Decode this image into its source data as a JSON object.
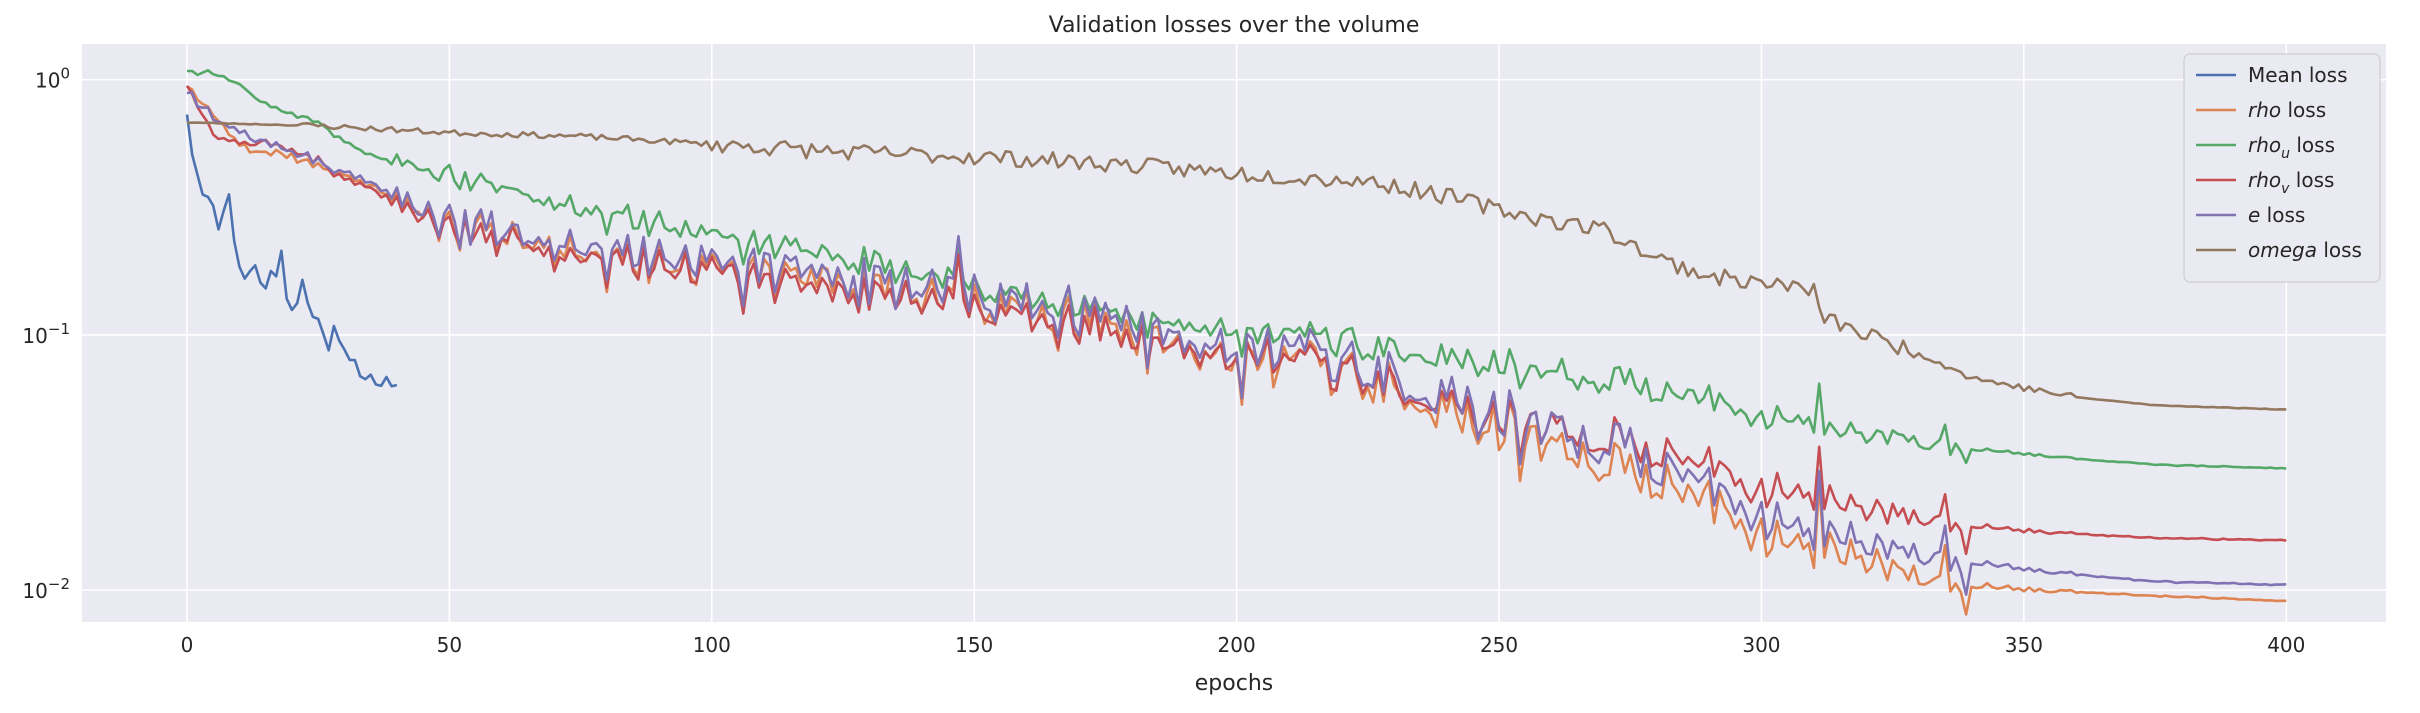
{
  "chart_data": {
    "type": "line",
    "title": "Validation losses over the volume",
    "xlabel": "epochs",
    "ylabel": "",
    "xlim": [
      -20,
      419
    ],
    "ylim": [
      0.0075,
      1.38
    ],
    "yscale": "log",
    "x_ticks": [
      0,
      50,
      100,
      150,
      200,
      250,
      300,
      350,
      400
    ],
    "y_ticks": [
      {
        "value": 1,
        "label": "10^0"
      },
      {
        "value": 0.1,
        "label": "10^-1"
      },
      {
        "value": 0.01,
        "label": "10^-2"
      }
    ],
    "grid": true,
    "legend_position": "top-right",
    "colors": {
      "background": "#eaeaf2",
      "grid": "#ffffff",
      "mean": "#4c72b0",
      "rho": "#dd8452",
      "rho_u": "#55a868",
      "rho_v": "#c44e52",
      "e": "#8172b3",
      "omega": "#937860"
    },
    "legend": [
      {
        "key": "mean",
        "label": "Mean loss",
        "italic": "",
        "sub": "",
        "rest": ""
      },
      {
        "key": "rho",
        "label": "",
        "italic": "rho",
        "sub": "",
        "rest": " loss"
      },
      {
        "key": "rho_u",
        "label": "",
        "italic": "rho",
        "sub": "u",
        "rest": " loss"
      },
      {
        "key": "rho_v",
        "label": "",
        "italic": "rho",
        "sub": "v",
        "rest": " loss"
      },
      {
        "key": "e",
        "label": "",
        "italic": "e",
        "sub": "",
        "rest": " loss"
      },
      {
        "key": "omega",
        "label": "",
        "italic": "omega",
        "sub": "",
        "rest": " loss"
      }
    ],
    "series": [
      {
        "key": "mean",
        "name": "Mean loss",
        "end_epoch": 40,
        "points": [
          [
            0,
            0.75
          ],
          [
            1,
            0.52
          ],
          [
            2,
            0.43
          ],
          [
            3,
            0.37
          ],
          [
            4,
            0.34
          ],
          [
            5,
            0.31
          ],
          [
            6,
            0.27
          ],
          [
            7,
            0.3
          ],
          [
            8,
            0.37
          ],
          [
            9,
            0.24
          ],
          [
            10,
            0.18
          ],
          [
            11,
            0.17
          ],
          [
            12,
            0.18
          ],
          [
            13,
            0.19
          ],
          [
            14,
            0.16
          ],
          [
            15,
            0.15
          ],
          [
            16,
            0.18
          ],
          [
            17,
            0.17
          ],
          [
            18,
            0.21
          ],
          [
            19,
            0.14
          ],
          [
            20,
            0.13
          ],
          [
            21,
            0.13
          ],
          [
            22,
            0.16
          ],
          [
            23,
            0.14
          ],
          [
            24,
            0.12
          ],
          [
            25,
            0.12
          ],
          [
            26,
            0.1
          ],
          [
            27,
            0.091
          ],
          [
            28,
            0.11
          ],
          [
            29,
            0.091
          ],
          [
            30,
            0.085
          ],
          [
            31,
            0.078
          ],
          [
            32,
            0.076
          ],
          [
            33,
            0.072
          ],
          [
            34,
            0.068
          ],
          [
            35,
            0.068
          ],
          [
            36,
            0.067
          ],
          [
            37,
            0.065
          ],
          [
            38,
            0.066
          ],
          [
            39,
            0.065
          ],
          [
            40,
            0.065
          ]
        ]
      },
      {
        "key": "rho",
        "name": "rho loss",
        "end_epoch": 400,
        "points": [
          [
            0,
            0.95
          ],
          [
            10,
            0.55
          ],
          [
            20,
            0.5
          ],
          [
            30,
            0.42
          ],
          [
            40,
            0.34
          ],
          [
            50,
            0.28
          ],
          [
            75,
            0.22
          ],
          [
            100,
            0.19
          ],
          [
            125,
            0.16
          ],
          [
            150,
            0.135
          ],
          [
            175,
            0.11
          ],
          [
            200,
            0.085
          ],
          [
            225,
            0.065
          ],
          [
            250,
            0.045
          ],
          [
            275,
            0.03
          ],
          [
            290,
            0.022
          ],
          [
            300,
            0.018
          ],
          [
            312,
            0.015
          ],
          [
            325,
            0.012
          ],
          [
            340,
            0.0105
          ],
          [
            350,
            0.01
          ],
          [
            375,
            0.0095
          ],
          [
            400,
            0.0091
          ]
        ]
      },
      {
        "key": "rho_u",
        "name": "rho_u loss",
        "end_epoch": 400,
        "points": [
          [
            0,
            1.1
          ],
          [
            5,
            1.05
          ],
          [
            10,
            0.95
          ],
          [
            15,
            0.8
          ],
          [
            20,
            0.73
          ],
          [
            25,
            0.68
          ],
          [
            30,
            0.57
          ],
          [
            35,
            0.5
          ],
          [
            40,
            0.47
          ],
          [
            50,
            0.44
          ],
          [
            60,
            0.38
          ],
          [
            75,
            0.32
          ],
          [
            100,
            0.25
          ],
          [
            125,
            0.2
          ],
          [
            150,
            0.155
          ],
          [
            175,
            0.125
          ],
          [
            200,
            0.105
          ],
          [
            225,
            0.09
          ],
          [
            250,
            0.078
          ],
          [
            275,
            0.065
          ],
          [
            290,
            0.055
          ],
          [
            300,
            0.05
          ],
          [
            311,
            0.047
          ],
          [
            312,
            0.043
          ],
          [
            325,
            0.04
          ],
          [
            340,
            0.036
          ],
          [
            350,
            0.034
          ],
          [
            375,
            0.031
          ],
          [
            400,
            0.03
          ]
        ]
      },
      {
        "key": "rho_v",
        "name": "rho_v loss",
        "end_epoch": 400,
        "points": [
          [
            0,
            0.97
          ],
          [
            5,
            0.6
          ],
          [
            10,
            0.56
          ],
          [
            15,
            0.57
          ],
          [
            20,
            0.53
          ],
          [
            25,
            0.48
          ],
          [
            30,
            0.41
          ],
          [
            40,
            0.33
          ],
          [
            50,
            0.27
          ],
          [
            75,
            0.21
          ],
          [
            100,
            0.18
          ],
          [
            125,
            0.15
          ],
          [
            150,
            0.13
          ],
          [
            175,
            0.105
          ],
          [
            200,
            0.085
          ],
          [
            225,
            0.067
          ],
          [
            250,
            0.05
          ],
          [
            275,
            0.038
          ],
          [
            290,
            0.03
          ],
          [
            300,
            0.027
          ],
          [
            311,
            0.024
          ],
          [
            312,
            0.023
          ],
          [
            325,
            0.02
          ],
          [
            340,
            0.018
          ],
          [
            350,
            0.017
          ],
          [
            375,
            0.016
          ],
          [
            400,
            0.0157
          ]
        ]
      },
      {
        "key": "e",
        "name": "e loss",
        "end_epoch": 400,
        "points": [
          [
            0,
            0.92
          ],
          [
            5,
            0.7
          ],
          [
            10,
            0.62
          ],
          [
            15,
            0.57
          ],
          [
            20,
            0.52
          ],
          [
            25,
            0.48
          ],
          [
            30,
            0.43
          ],
          [
            40,
            0.35
          ],
          [
            50,
            0.29
          ],
          [
            75,
            0.23
          ],
          [
            100,
            0.2
          ],
          [
            125,
            0.17
          ],
          [
            150,
            0.145
          ],
          [
            175,
            0.12
          ],
          [
            200,
            0.093
          ],
          [
            225,
            0.072
          ],
          [
            250,
            0.051
          ],
          [
            275,
            0.036
          ],
          [
            290,
            0.025
          ],
          [
            300,
            0.021
          ],
          [
            312,
            0.017
          ],
          [
            325,
            0.0145
          ],
          [
            340,
            0.013
          ],
          [
            350,
            0.012
          ],
          [
            375,
            0.0108
          ],
          [
            400,
            0.0105
          ]
        ]
      },
      {
        "key": "omega",
        "name": "omega loss",
        "end_epoch": 400,
        "points": [
          [
            0,
            0.68
          ],
          [
            25,
            0.66
          ],
          [
            50,
            0.62
          ],
          [
            75,
            0.6
          ],
          [
            100,
            0.56
          ],
          [
            125,
            0.52
          ],
          [
            150,
            0.5
          ],
          [
            175,
            0.47
          ],
          [
            200,
            0.43
          ],
          [
            225,
            0.4
          ],
          [
            240,
            0.35
          ],
          [
            250,
            0.31
          ],
          [
            260,
            0.28
          ],
          [
            270,
            0.26
          ],
          [
            280,
            0.2
          ],
          [
            290,
            0.17
          ],
          [
            300,
            0.16
          ],
          [
            310,
            0.15
          ],
          [
            311,
            0.12
          ],
          [
            320,
            0.1
          ],
          [
            330,
            0.085
          ],
          [
            340,
            0.068
          ],
          [
            350,
            0.062
          ],
          [
            360,
            0.057
          ],
          [
            375,
            0.053
          ],
          [
            400,
            0.051
          ]
        ]
      }
    ]
  }
}
